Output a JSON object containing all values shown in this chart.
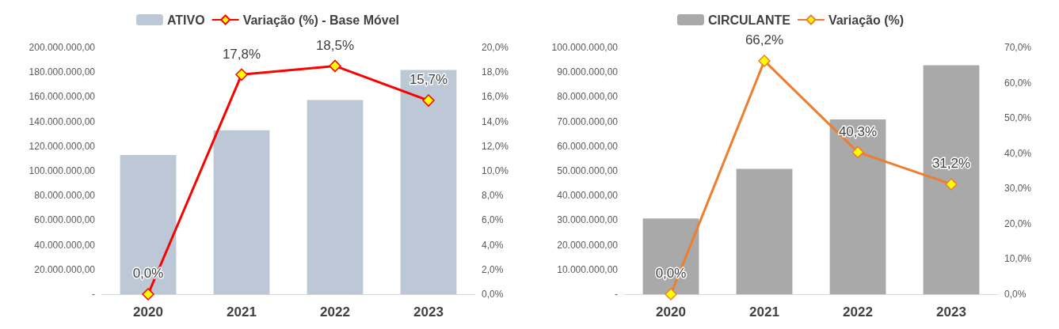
{
  "chart_data": [
    {
      "type": "bar",
      "categories": [
        "2020",
        "2021",
        "2022",
        "2023"
      ],
      "series": [
        {
          "name": "ATIVO",
          "color": "#bcc8d6",
          "values": [
            112900000,
            132900000,
            157400000,
            181800000
          ]
        },
        {
          "name": "Variação (%) - Base Móvel",
          "type": "line",
          "axis": "y2",
          "color": "#ff0000",
          "values": [
            0,
            17.8,
            18.5,
            15.7
          ],
          "value_labels": [
            "0,0%",
            "17,8%",
            "18,5%",
            "15,7%"
          ]
        }
      ],
      "ylim": [
        0,
        200000000
      ],
      "yticks": [
        {
          "value": 0,
          "label": "-"
        },
        {
          "value": 20000000,
          "label": "20.000.000,00"
        },
        {
          "value": 40000000,
          "label": "40.000.000,00"
        },
        {
          "value": 60000000,
          "label": "60.000.000,00"
        },
        {
          "value": 80000000,
          "label": "80.000.000,00"
        },
        {
          "value": 100000000,
          "label": "100.000.000,00"
        },
        {
          "value": 120000000,
          "label": "120.000.000,00"
        },
        {
          "value": 140000000,
          "label": "140.000.000,00"
        },
        {
          "value": 160000000,
          "label": "160.000.000,00"
        },
        {
          "value": 180000000,
          "label": "180.000.000,00"
        },
        {
          "value": 200000000,
          "label": "200.000.000,00"
        }
      ],
      "y2lim": [
        0,
        20
      ],
      "y2ticks": [
        {
          "value": 0,
          "label": "0,0%"
        },
        {
          "value": 2,
          "label": "2,0%"
        },
        {
          "value": 4,
          "label": "4,0%"
        },
        {
          "value": 6,
          "label": "6,0%"
        },
        {
          "value": 8,
          "label": "8,0%"
        },
        {
          "value": 10,
          "label": "10,0%"
        },
        {
          "value": 12,
          "label": "12,0%"
        },
        {
          "value": 14,
          "label": "14,0%"
        },
        {
          "value": 16,
          "label": "16,0%"
        },
        {
          "value": 18,
          "label": "18,0%"
        },
        {
          "value": 20,
          "label": "20,0%"
        }
      ],
      "marker": "diamond",
      "legend": "top",
      "grid": false
    },
    {
      "type": "bar",
      "categories": [
        "2020",
        "2021",
        "2022",
        "2023"
      ],
      "series": [
        {
          "name": "CIRCULANTE",
          "color": "#a9a9a9",
          "values": [
            30700000,
            50800000,
            70800000,
            92800000
          ]
        },
        {
          "name": "Variação (%)",
          "type": "line",
          "axis": "y2",
          "color": "#ed7d31",
          "values": [
            0,
            66.2,
            40.3,
            31.2
          ],
          "value_labels": [
            "0,0%",
            "66,2%",
            "40,3%",
            "31,2%"
          ]
        }
      ],
      "ylim": [
        0,
        100000000
      ],
      "yticks": [
        {
          "value": 0,
          "label": "-"
        },
        {
          "value": 10000000,
          "label": "10.000.000,00"
        },
        {
          "value": 20000000,
          "label": "20.000.000,00"
        },
        {
          "value": 30000000,
          "label": "30.000.000,00"
        },
        {
          "value": 40000000,
          "label": "40.000.000,00"
        },
        {
          "value": 50000000,
          "label": "50.000.000,00"
        },
        {
          "value": 60000000,
          "label": "60.000.000,00"
        },
        {
          "value": 70000000,
          "label": "70.000.000,00"
        },
        {
          "value": 80000000,
          "label": "80.000.000,00"
        },
        {
          "value": 90000000,
          "label": "90.000.000,00"
        },
        {
          "value": 100000000,
          "label": "100.000.000,00"
        }
      ],
      "y2lim": [
        0,
        70
      ],
      "y2ticks": [
        {
          "value": 0,
          "label": "0,0%"
        },
        {
          "value": 10,
          "label": "10,0%"
        },
        {
          "value": 20,
          "label": "20,0%"
        },
        {
          "value": 30,
          "label": "30,0%"
        },
        {
          "value": 40,
          "label": "40,0%"
        },
        {
          "value": 50,
          "label": "50,0%"
        },
        {
          "value": 60,
          "label": "60,0%"
        },
        {
          "value": 70,
          "label": "70,0%"
        }
      ],
      "marker": "diamond",
      "legend": "top",
      "grid": false
    }
  ]
}
